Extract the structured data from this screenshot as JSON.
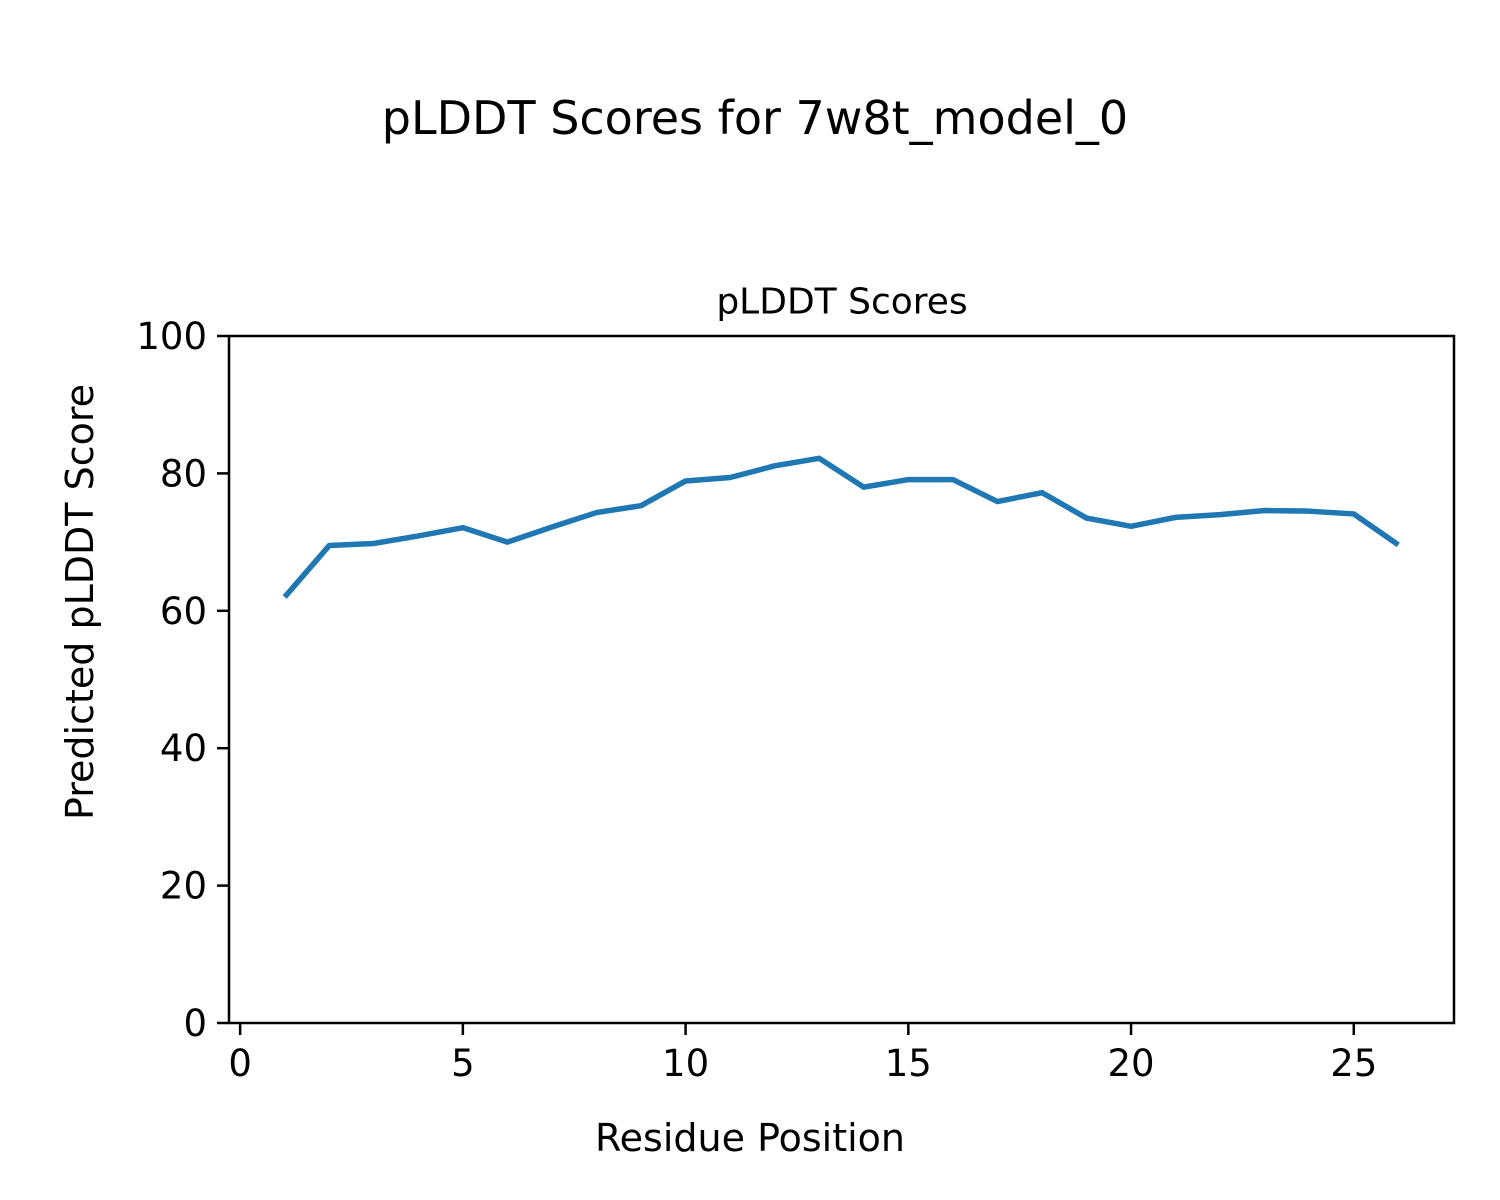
{
  "figure": {
    "suptitle": "pLDDT Scores for 7w8t_model_0"
  },
  "chart_data": {
    "type": "line",
    "title": "pLDDT Scores",
    "xlabel": "Residue Position",
    "ylabel": "Predicted pLDDT Score",
    "series": [
      {
        "name": "pLDDT",
        "x": [
          1,
          2,
          3,
          4,
          5,
          6,
          7,
          8,
          9,
          10,
          11,
          12,
          13,
          14,
          15,
          16,
          17,
          18,
          19,
          20,
          21,
          22,
          23,
          24,
          25,
          26
        ],
        "y": [
          62.0,
          69.5,
          69.8,
          70.9,
          72.1,
          70.0,
          72.2,
          74.3,
          75.3,
          78.9,
          79.4,
          81.1,
          82.2,
          78.0,
          79.1,
          79.1,
          75.9,
          77.2,
          73.5,
          72.3,
          73.6,
          74.0,
          74.6,
          74.5,
          74.1,
          69.6
        ]
      }
    ],
    "xlim": [
      -0.25,
      27.25
    ],
    "ylim": [
      0,
      100
    ],
    "xticks": [
      0,
      5,
      10,
      15,
      20,
      25
    ],
    "yticks": [
      0,
      20,
      40,
      60,
      80,
      100
    ],
    "line_color": "#1f77b4",
    "axis_color": "#000000",
    "grid": false,
    "legend_position": "none"
  }
}
